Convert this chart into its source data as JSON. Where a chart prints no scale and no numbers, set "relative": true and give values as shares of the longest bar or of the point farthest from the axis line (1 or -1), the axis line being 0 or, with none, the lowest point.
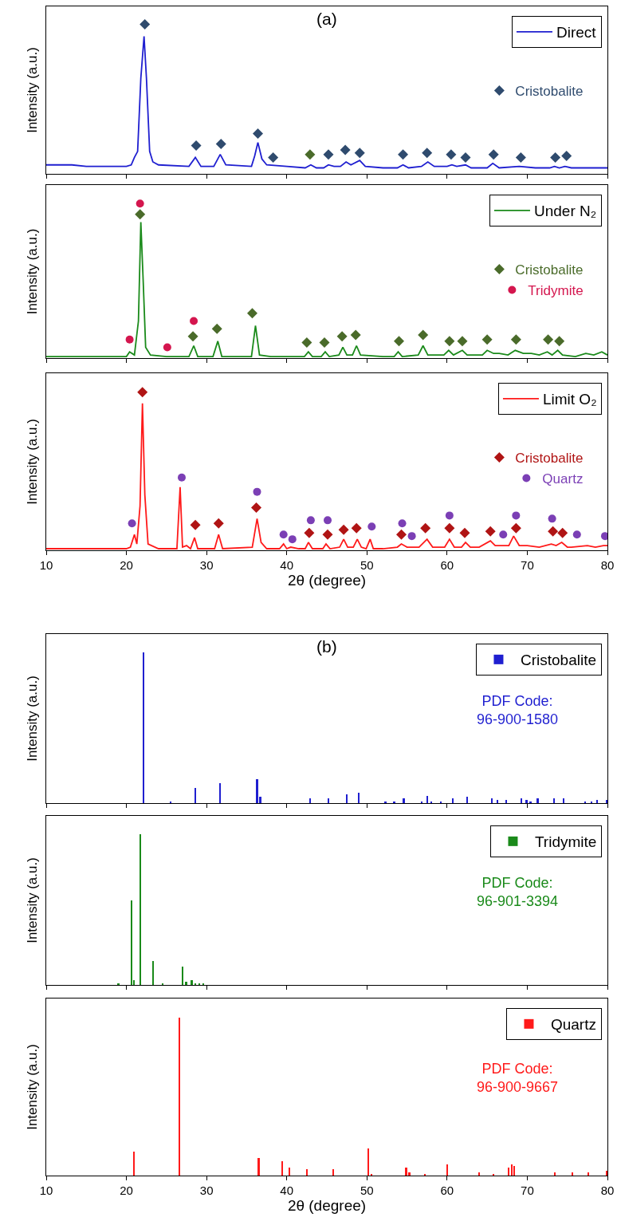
{
  "chart_data": [
    {
      "type": "line",
      "relative": true,
      "title": "(a)",
      "ylabel": "Intensity (a.u.)",
      "xlim": [
        10,
        80
      ],
      "xticks": [
        10,
        20,
        30,
        40,
        50,
        60,
        70,
        80
      ],
      "tick_labels": false,
      "legend": "top right",
      "series": [
        {
          "name": "Direct",
          "type": "line",
          "color": "#1f1fd0",
          "x": [
            10,
            13.2,
            15,
            20,
            20.6,
            21.0,
            21.4,
            21.8,
            22.2,
            22.5,
            22.9,
            23.3,
            24,
            27.8,
            28.6,
            29.3,
            30.9,
            31.7,
            32.4,
            35.6,
            36.0,
            36.4,
            36.9,
            37.5,
            40,
            42.3,
            43.0,
            43.7,
            44.6,
            45.2,
            45.9,
            46.7,
            47.4,
            48.0,
            49.1,
            49.8,
            52,
            53.8,
            54.5,
            55.2,
            56.8,
            57.6,
            58.4,
            60.0,
            60.6,
            61.2,
            62.3,
            63.0,
            65.0,
            65.7,
            66.5,
            69.0,
            71,
            72.8,
            73.4,
            74.0,
            74.7,
            75.5,
            78.5,
            80
          ],
          "values": [
            0.06,
            0.06,
            0.05,
            0.05,
            0.06,
            0.11,
            0.15,
            0.64,
            0.92,
            0.64,
            0.15,
            0.08,
            0.06,
            0.05,
            0.11,
            0.05,
            0.05,
            0.13,
            0.06,
            0.05,
            0.12,
            0.21,
            0.1,
            0.06,
            0.05,
            0.04,
            0.06,
            0.04,
            0.04,
            0.06,
            0.05,
            0.05,
            0.08,
            0.06,
            0.09,
            0.05,
            0.04,
            0.04,
            0.06,
            0.04,
            0.05,
            0.08,
            0.05,
            0.05,
            0.06,
            0.05,
            0.06,
            0.04,
            0.04,
            0.07,
            0.04,
            0.05,
            0.04,
            0.04,
            0.05,
            0.04,
            0.05,
            0.04,
            0.04,
            0.04
          ]
        },
        {
          "name": "Cristobalite",
          "type": "scatter",
          "marker": "diamond",
          "color": "#2f4b6e",
          "colors": [
            "#2f4b6e",
            "#2f4b6e",
            "#2f4b6e",
            "#2f4b6e",
            "#2f4b6e",
            "#4a6b2a",
            "#2f4b6e",
            "#2f4b6e",
            "#2f4b6e",
            "#2f4b6e",
            "#2f4b6e",
            "#2f4b6e",
            "#2f4b6e",
            "#2f4b6e",
            "#2f4b6e",
            "#2f4b6e",
            "#2f4b6e"
          ],
          "x": [
            22.3,
            28.7,
            31.8,
            36.4,
            38.3,
            42.9,
            45.2,
            47.3,
            49.1,
            54.5,
            57.5,
            60.5,
            62.3,
            65.8,
            69.2,
            73.5,
            74.9
          ],
          "values": [
            1.0,
            0.19,
            0.2,
            0.27,
            0.11,
            0.13,
            0.13,
            0.16,
            0.14,
            0.13,
            0.14,
            0.13,
            0.11,
            0.13,
            0.11,
            0.11,
            0.12
          ]
        }
      ]
    },
    {
      "type": "line",
      "relative": true,
      "ylabel": "Intensity (a.u.)",
      "xlim": [
        10,
        80
      ],
      "xticks": [
        10,
        20,
        30,
        40,
        50,
        60,
        70,
        80
      ],
      "tick_labels": false,
      "legend": "top right",
      "series": [
        {
          "name": "Under N₂",
          "type": "line",
          "color": "#1a8a1a",
          "x": [
            10,
            19.5,
            20.0,
            20.4,
            21.0,
            21.5,
            21.8,
            22.1,
            22.4,
            23,
            25,
            27.8,
            28.4,
            28.9,
            30.8,
            31.4,
            31.9,
            35.6,
            36.1,
            36.6,
            38,
            42.2,
            42.7,
            43.2,
            44.3,
            44.8,
            45.3,
            46.5,
            47.0,
            47.5,
            48.2,
            48.7,
            49.2,
            52,
            53.4,
            53.9,
            54.4,
            56.4,
            57.0,
            57.6,
            59.6,
            60.2,
            60.8,
            61.9,
            62.5,
            64.4,
            65.0,
            65.8,
            66.5,
            67.6,
            68.5,
            69.5,
            70.5,
            71.5,
            72.5,
            73.1,
            73.8,
            74.4,
            76,
            77.3,
            78.3,
            79.3,
            80
          ],
          "values": [
            0.01,
            0.01,
            0.01,
            0.04,
            0.02,
            0.24,
            0.88,
            0.49,
            0.07,
            0.02,
            0.01,
            0.01,
            0.08,
            0.01,
            0.01,
            0.11,
            0.01,
            0.01,
            0.21,
            0.02,
            0.01,
            0.01,
            0.04,
            0.01,
            0.01,
            0.04,
            0.01,
            0.02,
            0.07,
            0.02,
            0.02,
            0.08,
            0.02,
            0.01,
            0.01,
            0.04,
            0.01,
            0.02,
            0.08,
            0.02,
            0.02,
            0.05,
            0.02,
            0.05,
            0.02,
            0.02,
            0.05,
            0.03,
            0.03,
            0.02,
            0.05,
            0.03,
            0.03,
            0.02,
            0.04,
            0.02,
            0.05,
            0.02,
            0.01,
            0.03,
            0.02,
            0.04,
            0.02
          ]
        },
        {
          "name": "Cristobalite",
          "type": "scatter",
          "marker": "diamond",
          "color": "#4a6b2a",
          "x": [
            21.7,
            28.3,
            31.3,
            35.7,
            42.5,
            44.7,
            46.9,
            48.6,
            54.0,
            57.0,
            60.3,
            61.9,
            65.0,
            68.6,
            72.6,
            74.0
          ],
          "values": [
            0.93,
            0.14,
            0.19,
            0.29,
            0.1,
            0.1,
            0.14,
            0.15,
            0.11,
            0.15,
            0.11,
            0.11,
            0.12,
            0.12,
            0.12,
            0.11
          ]
        },
        {
          "name": "Tridymite",
          "type": "scatter",
          "marker": "circle",
          "color": "#d4164e",
          "x": [
            20.4,
            21.7,
            25.1,
            28.4
          ],
          "values": [
            0.12,
            1.0,
            0.07,
            0.24
          ]
        }
      ]
    },
    {
      "type": "line",
      "relative": true,
      "xlabel": "2θ (degree)",
      "ylabel": "Intensity (a.u.)",
      "xlim": [
        10,
        80
      ],
      "xticks": [
        10,
        20,
        30,
        40,
        50,
        60,
        70,
        80
      ],
      "tick_labels": "x",
      "legend": "top right",
      "series": [
        {
          "name": "Limit O₂",
          "type": "line",
          "color": "#ff1a1a",
          "x": [
            10,
            20,
            20.5,
            21.0,
            21.3,
            21.7,
            22.0,
            22.3,
            22.7,
            24,
            26.3,
            26.7,
            27.0,
            27.5,
            28.0,
            28.5,
            28.9,
            31.0,
            31.5,
            32.0,
            35.7,
            36.3,
            36.8,
            37.5,
            39.1,
            39.6,
            40.0,
            40.5,
            41.5,
            42.3,
            42.7,
            43.2,
            44.5,
            44.9,
            45.4,
            46.6,
            47.1,
            47.6,
            48.3,
            48.8,
            49.3,
            49.9,
            50.4,
            50.8,
            52,
            53.8,
            54.3,
            55,
            56.5,
            57.5,
            58.2,
            59.7,
            60.3,
            60.9,
            61.8,
            62.3,
            62.9,
            64,
            65.4,
            66,
            67,
            67.7,
            68.3,
            69,
            70,
            71.5,
            73.0,
            73.6,
            74.3,
            75,
            75.5,
            77.5,
            78.5,
            79.5,
            80
          ],
          "values": [
            0.01,
            0.01,
            0.02,
            0.1,
            0.04,
            0.28,
            0.93,
            0.35,
            0.04,
            0.01,
            0.01,
            0.4,
            0.02,
            0.03,
            0.01,
            0.08,
            0.01,
            0.01,
            0.1,
            0.01,
            0.02,
            0.2,
            0.05,
            0.01,
            0.01,
            0.04,
            0.01,
            0.02,
            0.01,
            0.01,
            0.05,
            0.01,
            0.01,
            0.04,
            0.01,
            0.02,
            0.07,
            0.02,
            0.02,
            0.07,
            0.02,
            0.01,
            0.07,
            0.01,
            0.01,
            0.02,
            0.04,
            0.02,
            0.02,
            0.07,
            0.02,
            0.02,
            0.07,
            0.02,
            0.02,
            0.05,
            0.02,
            0.02,
            0.06,
            0.03,
            0.03,
            0.03,
            0.09,
            0.03,
            0.03,
            0.02,
            0.04,
            0.03,
            0.05,
            0.02,
            0.02,
            0.03,
            0.02,
            0.03,
            0.03
          ]
        },
        {
          "name": "Cristobalite",
          "type": "scatter",
          "marker": "diamond",
          "color": "#b01414",
          "x": [
            22.0,
            28.6,
            31.5,
            36.2,
            42.8,
            45.1,
            47.1,
            48.7,
            54.3,
            57.3,
            60.3,
            62.2,
            65.4,
            68.6,
            73.2,
            74.4
          ],
          "values": [
            1.0,
            0.16,
            0.17,
            0.27,
            0.11,
            0.1,
            0.13,
            0.14,
            0.1,
            0.14,
            0.14,
            0.11,
            0.12,
            0.14,
            0.12,
            0.11
          ]
        },
        {
          "name": "Quartz",
          "type": "scatter",
          "marker": "circle",
          "color": "#7b3fb5",
          "x": [
            20.7,
            26.9,
            36.3,
            39.6,
            40.7,
            43.0,
            45.1,
            50.6,
            54.4,
            55.6,
            60.3,
            67.0,
            68.6,
            73.1,
            76.2,
            79.7
          ],
          "values": [
            0.17,
            0.46,
            0.37,
            0.1,
            0.07,
            0.19,
            0.19,
            0.15,
            0.17,
            0.09,
            0.22,
            0.1,
            0.22,
            0.2,
            0.1,
            0.09
          ]
        }
      ]
    },
    {
      "type": "bar",
      "relative": true,
      "title": "(b)",
      "ylabel": "Intensity (a.u.)",
      "xlim": [
        10,
        80
      ],
      "xticks": [
        10,
        20,
        30,
        40,
        50,
        60,
        70,
        80
      ],
      "tick_labels": false,
      "legend": "top right",
      "annotations": [
        "PDF Code:\n96-900-1580"
      ],
      "series": [
        {
          "name": "Cristobalite",
          "color": "#1f1fd0",
          "x": [
            22.1,
            25.5,
            28.6,
            31.7,
            36.3,
            36.7,
            42.9,
            45.2,
            47.5,
            49.0,
            52.3,
            53.4,
            54.6,
            56.8,
            57.5,
            58.0,
            59.2,
            60.7,
            62.5,
            65.6,
            66.3,
            67.4,
            69.3,
            69.9,
            70.4,
            71.3,
            73.3,
            74.5,
            77.2,
            78.0,
            78.7,
            79.9
          ],
          "values": [
            1.0,
            0.01,
            0.1,
            0.13,
            0.16,
            0.04,
            0.03,
            0.03,
            0.06,
            0.07,
            0.01,
            0.01,
            0.03,
            0.01,
            0.05,
            0.01,
            0.01,
            0.03,
            0.04,
            0.03,
            0.02,
            0.02,
            0.03,
            0.02,
            0.01,
            0.03,
            0.03,
            0.03,
            0.01,
            0.01,
            0.02,
            0.02
          ]
        }
      ]
    },
    {
      "type": "bar",
      "relative": true,
      "ylabel": "Intensity (a.u.)",
      "xlim": [
        10,
        80
      ],
      "xticks": [
        10,
        20,
        30,
        40,
        50,
        60,
        70,
        80
      ],
      "tick_labels": false,
      "legend": "top right",
      "annotations": [
        "PDF Code:\n96-901-3394"
      ],
      "series": [
        {
          "name": "Tridymite",
          "color": "#1a8a1a",
          "x": [
            19.0,
            20.6,
            20.9,
            21.7,
            23.35,
            24.5,
            27.0,
            27.45,
            28.15,
            28.6,
            29.1,
            29.6
          ],
          "values": [
            0.01,
            0.56,
            0.03,
            1.0,
            0.16,
            0.01,
            0.12,
            0.02,
            0.03,
            0.01,
            0.01,
            0.01
          ]
        }
      ]
    },
    {
      "type": "bar",
      "relative": true,
      "xlabel": "2θ (degree)",
      "ylabel": "Intensity (a.u.)",
      "xlim": [
        10,
        80
      ],
      "xticks": [
        10,
        20,
        30,
        40,
        50,
        60,
        70,
        80
      ],
      "tick_labels": "x",
      "legend": "top right",
      "annotations": [
        "PDF Code:\n96-900-9667"
      ],
      "series": [
        {
          "name": "Quartz",
          "color": "#ff1a1a",
          "x": [
            20.9,
            26.6,
            36.5,
            39.4,
            40.3,
            42.5,
            45.8,
            50.2,
            50.6,
            54.9,
            55.3,
            57.2,
            60.0,
            64.0,
            65.8,
            67.7,
            68.1,
            68.4,
            73.4,
            75.6,
            77.6,
            79.9
          ],
          "values": [
            0.15,
            1.0,
            0.11,
            0.09,
            0.05,
            0.04,
            0.04,
            0.17,
            0.01,
            0.05,
            0.02,
            0.01,
            0.07,
            0.02,
            0.01,
            0.05,
            0.07,
            0.06,
            0.02,
            0.02,
            0.02,
            0.03
          ]
        }
      ]
    }
  ]
}
